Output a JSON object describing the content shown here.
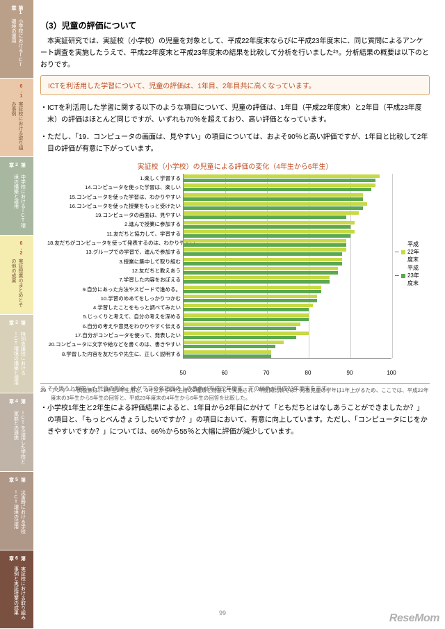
{
  "sidebar": {
    "tabs": [
      {
        "num": "第1章",
        "label": "小学校におけるICT環境の運用",
        "bg": "#bba089",
        "sub": {
          "num": "6.1",
          "label": "実証校における取り組み事例",
          "bg": "#e8c8a8",
          "light": true
        }
      },
      {
        "num": "第2章",
        "label": "中学校におけるICT環境の構築と運用",
        "bg": "#a8b8a0",
        "sub": {
          "num": "6.2",
          "label": "実証授業のまとめとその他の成果",
          "bg": "#f5ecb0",
          "light": true
        }
      },
      {
        "num": "第3章",
        "label": "特別支援校におけるICT環境の構築と運用",
        "bg": "#d8d0b8",
        "sub": null
      },
      {
        "num": "第4章",
        "label": "ICTを活用した学校と家庭との連携",
        "bg": "#c0b4a8",
        "sub": null
      },
      {
        "num": "第5章",
        "label": "災害時における学校ICT環境の活用",
        "bg": "#b09888",
        "sub": null
      },
      {
        "num": "第6章",
        "label": "実証校における取り組み事例と実証授業の成果",
        "bg": "#7a5040",
        "sub": null
      }
    ]
  },
  "section_title": "（3）児童の評価について",
  "intro": "　本実証研究では、実証校（小学校）の児童を対象として、平成22年度末ならびに平成23年度末に、同じ質問によるアンケート調査を実施したうえで、平成22年度末と平成23年度末の結果を比較して分析を行いました²⁹。分析結果の概要は以下のとおりです。",
  "callout": "ICTを利活用した学習について、児童の評価は、1年目、2年目共に高くなっています。",
  "bullets_top": [
    "・ICTを利活用した学習に関する以下のような項目について、児童の評価は、1年目（平成22年度末）と2年目（平成23年度末）の評価はほとんど同じですが、いずれも70％を超えており、高い評価となっています。",
    "・ただし、「19．コンピュータの画面は、見やすい」の項目については、およそ90％と高い評価ですが、1年目と比較して2年目の評価が有意に下がっています。"
  ],
  "chart": {
    "title": "実証校（小学校）の児童による評価の変化（4年生から6年生）",
    "xmin": 50,
    "xmax": 100,
    "ticks": [
      50,
      60,
      70,
      80,
      90,
      100
    ],
    "colors": {
      "y22": "#c7d943",
      "y23": "#5aa850",
      "grid": "#cccccc"
    },
    "legend": [
      {
        "label": "平成22年度末",
        "color": "#c7d943"
      },
      {
        "label": "平成23年度末",
        "color": "#5aa850"
      }
    ],
    "items": [
      {
        "label": "1.楽しく学習する",
        "y22": 97,
        "y23": 96
      },
      {
        "label": "14.コンピュータを使った学習は、楽しい",
        "y22": 96,
        "y23": 95
      },
      {
        "label": "15.コンピュータを使った学習は、わかりやすい",
        "y22": 93,
        "y23": 93
      },
      {
        "label": "16.コンピュータを使った授業をもっと受けたい",
        "y22": 94,
        "y23": 93
      },
      {
        "label": "19.コンピュータの画面は、見やすい",
        "y22": 92,
        "y23": 89
      },
      {
        "label": "2.進んで授業に参加する",
        "y22": 91,
        "y23": 90
      },
      {
        "label": "11.友だちと協力して、学習する",
        "y22": 91,
        "y23": 90
      },
      {
        "label": "18.友だちがコンピュータを使って発表するのは、わかりやすい",
        "y22": 89,
        "y23": 89
      },
      {
        "label": "13.グループでの学習で、進んで参加する",
        "y22": 89,
        "y23": 88
      },
      {
        "label": "3.授業に集中して取り組む",
        "y22": 88,
        "y23": 88
      },
      {
        "label": "12.友だちと教えあう",
        "y22": 87,
        "y23": 87
      },
      {
        "label": "7.学習した内容をおぼえる",
        "y22": 85,
        "y23": 85
      },
      {
        "label": "9.自分にあった方法やスピードで進める。",
        "y22": 83,
        "y23": 83
      },
      {
        "label": "10.学習のめあてをしっかりつかむ",
        "y22": 82,
        "y23": 82
      },
      {
        "label": "4.学習したことをもっと調べてみたい",
        "y22": 81,
        "y23": 80
      },
      {
        "label": "5.じっくりと考えて、自分の考えを深める",
        "y22": 80,
        "y23": 80
      },
      {
        "label": "6.自分の考えや意見をわかりやすく伝える",
        "y22": 78,
        "y23": 77
      },
      {
        "label": "17.自分がコンピュータを使って、発表したい",
        "y22": 80,
        "y23": 77
      },
      {
        "label": "20.コンピュータに文字や絵などを書くのは、書きやすい",
        "y22": 74,
        "y23": 72
      },
      {
        "label": "8.学習した内容を友だちや先生に、正しく説明する",
        "y22": 71,
        "y23": 71
      }
    ]
  },
  "caption": "※ そう思うと解答した児童の割合。棒グラフの各項目の上の黄色が平成22年度末、下の緑色が平成23年度末を示す。",
  "bullets_bottom": [
    "・小学校1年生と2年生による評価結果によると、1年目から2年目にかけて「ともだちとはなしあうことができましたか？」の項目と、「もっとべんきょうしたいですか？」の項目において、有意に向上しています。ただし、「コンピュータにじをかきやすいですか？」については、66％から55％と大幅に評価が減少しています。"
  ],
  "footnote": "29　アンケート調査票は、1年生2年生用と、3年生から6年生用の2種類を用意して実施され、年度間比較では、対象児童の学年は1年上がるため、ここでは、平成22年度末の3年生から5年生の回答と、平成23年度末の4年生から6年生の回答を比較した。",
  "page_number": "99",
  "watermark": "ReseMom"
}
